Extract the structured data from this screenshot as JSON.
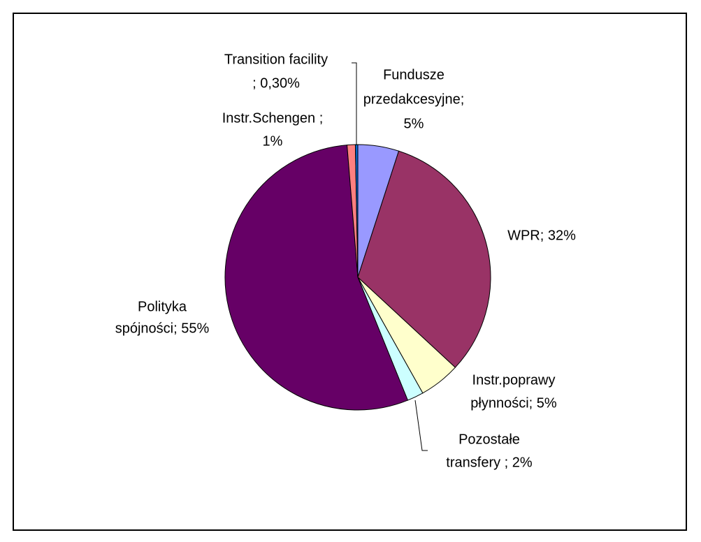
{
  "chart_data": {
    "type": "pie",
    "categories": [
      "Fundusze przedakcesyjne",
      "WPR",
      "Instr.poprawy płynności",
      "Pozostałe transfery",
      "Polityka spójności",
      "Instr.Schengen",
      "Transition facility"
    ],
    "values": [
      5,
      32,
      5,
      2,
      55,
      1,
      0.3
    ],
    "labels": [
      [
        "Fundusze",
        "przedakcesyjne;",
        "5%"
      ],
      [
        "WPR; 32%"
      ],
      [
        "Instr.poprawy",
        "płynności; 5%"
      ],
      [
        "Pozostałe",
        "transfery ; 2%"
      ],
      [
        "Polityka",
        "spójności; 55%"
      ],
      [
        "Instr.Schengen ;",
        "1%"
      ],
      [
        "Transition facility",
        "; 0,30%"
      ]
    ],
    "colors": [
      "#9999ff",
      "#993366",
      "#ffffcc",
      "#ccffff",
      "#660066",
      "#ff8080",
      "#0066cc"
    ]
  }
}
